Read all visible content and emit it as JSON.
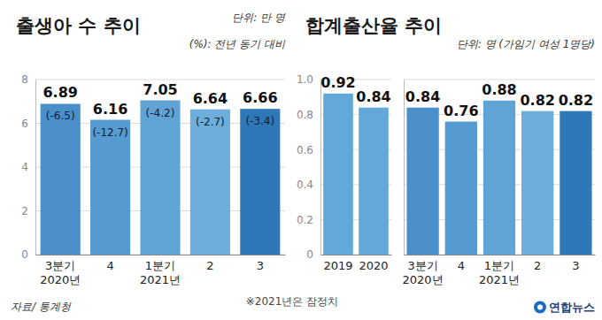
{
  "chart_data": [
    {
      "type": "bar",
      "title": "출생아 수 추이",
      "subtitle": [
        "단위: 만 명",
        "(%): 전년 동기 대비"
      ],
      "categories": [
        "3분기\n2020년",
        "4",
        "1분기\n2021년",
        "2",
        "3"
      ],
      "values": [
        6.89,
        6.16,
        7.05,
        6.64,
        6.66
      ],
      "changes": {
        "values": [
          -6.5,
          -12.7,
          -4.2,
          -2.7,
          -3.4
        ],
        "value_labels": [
          "(-6.5)",
          "(-12.7)",
          "(-4.2)",
          "(-2.7)",
          "(-3.4)"
        ]
      },
      "colors": [
        "#4a8fca",
        "#559ad0",
        "#60a4d6",
        "#6daedb",
        "#2f78b8"
      ],
      "ylim": [
        0,
        8
      ],
      "yticks": [
        0,
        2,
        4,
        6,
        8
      ],
      "grid": true,
      "data_labels": true
    },
    {
      "type": "bar",
      "title": "합계출산율 추이",
      "subtitle": "단위: 명 (가임기 여성 1명당)",
      "categories": [
        "2019",
        "2020"
      ],
      "values": [
        0.92,
        0.84
      ],
      "colors": [
        "#62a8d8",
        "#62a8d8"
      ],
      "ylim": [
        0,
        1
      ],
      "yticks": [
        0,
        0.2,
        0.4,
        0.6,
        0.8,
        {
          "value": 1,
          "label": "1.0"
        }
      ],
      "grid": true,
      "data_labels": true
    },
    {
      "type": "bar",
      "categories": [
        "3분기\n2020년",
        "4",
        "1분기\n2021년",
        "2",
        "3"
      ],
      "values": [
        0.84,
        0.76,
        0.88,
        0.82,
        0.82
      ],
      "colors": [
        "#4a8fca",
        "#559ad0",
        "#60a4d6",
        "#6daedb",
        "#2f78b8"
      ],
      "ylim": [
        0,
        1
      ],
      "yticks": [
        0,
        0.2,
        0.4,
        0.6,
        0.8,
        1
      ],
      "grid": true,
      "data_labels": true,
      "tick_labels": "x"
    }
  ],
  "source": "자료/ 통계청",
  "note": "※2021년은 잠정치",
  "credit": "연합뉴스"
}
